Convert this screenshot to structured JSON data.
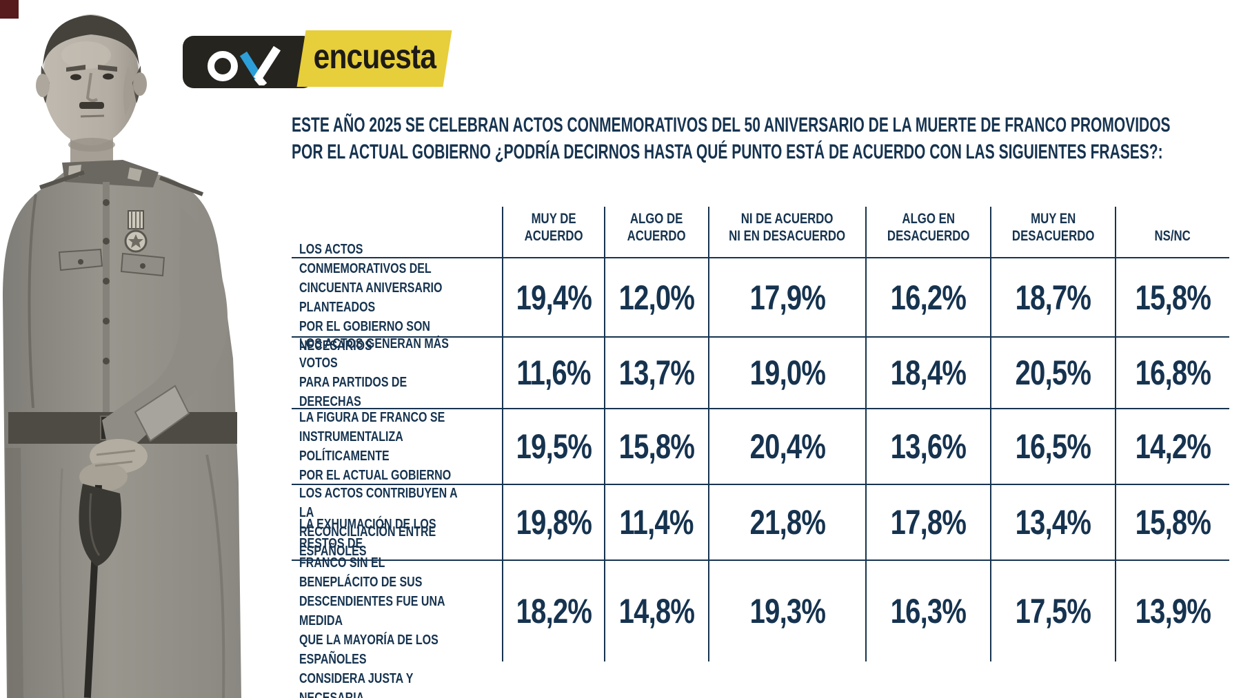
{
  "colors": {
    "ink": "#16334f",
    "logo_black": "#26241f",
    "logo_yellow": "#e7ce3b",
    "logo_blue": "#2d9fd8",
    "logo_text": "#1d1b17"
  },
  "logo": {
    "ok_text": "ok",
    "wordmark": "encuesta"
  },
  "title": {
    "line1": "ESTE AÑO 2025 SE CELEBRAN ACTOS CONMEMORATIVOS DEL 50 ANIVERSARIO DE LA MUERTE DE FRANCO PROMOVIDOS",
    "line2": "POR EL ACTUAL GOBIERNO ¿PODRÍA DECIRNOS HASTA QUÉ PUNTO ESTÁ DE ACUERDO CON LAS SIGUIENTES FRASES?:"
  },
  "photo": {
    "subject": "franco-portrait"
  },
  "chart_data": {
    "type": "table",
    "title": "ESTE AÑO 2025 SE CELEBRAN ACTOS CONMEMORATIVOS DEL 50 ANIVERSARIO DE LA MUERTE DE FRANCO PROMOVIDOS POR EL ACTUAL GOBIERNO ¿PODRÍA DECIRNOS HASTA QUÉ PUNTO ESTÁ DE ACUERDO CON LAS SIGUIENTES FRASES?:",
    "columns": [
      "MUY DE ACUERDO",
      "ALGO DE ACUERDO",
      "NI DE ACUERDO NI EN DESACUERDO",
      "ALGO EN DESACUERDO",
      "MUY EN DESACUERDO",
      "NS/NC"
    ],
    "column_lines": [
      [
        "MUY DE",
        "ACUERDO"
      ],
      [
        "ALGO DE",
        "ACUERDO"
      ],
      [
        "NI DE ACUERDO",
        "NI EN DESACUERDO"
      ],
      [
        "ALGO EN",
        "DESACUERDO"
      ],
      [
        "MUY EN",
        "DESACUERDO"
      ],
      [
        "NS/NC"
      ]
    ],
    "rows": [
      {
        "label": "LOS ACTOS CONMEMORATIVOS DEL CINCUENTA ANIVERSARIO PLANTEADOS POR EL GOBIERNO SON NECESARIOS",
        "label_lines": [
          "LOS ACTOS CONMEMORATIVOS DEL",
          "CINCUENTA ANIVERSARIO PLANTEADOS",
          "POR EL GOBIERNO SON NECESARIOS"
        ],
        "values": [
          "19,4%",
          "12,0%",
          "17,9%",
          "16,2%",
          "18,7%",
          "15,8%"
        ]
      },
      {
        "label": "LOS ACTOS GENERAN MÁS VOTOS PARA PARTIDOS DE DERECHAS",
        "label_lines": [
          "LOS ACTOS GENERAN MÁS VOTOS",
          "PARA PARTIDOS DE DERECHAS"
        ],
        "values": [
          "11,6%",
          "13,7%",
          "19,0%",
          "18,4%",
          "20,5%",
          "16,8%"
        ]
      },
      {
        "label": "LA FIGURA DE FRANCO SE INSTRUMENTALIZA POLÍTICAMENTE POR EL ACTUAL GOBIERNO",
        "label_lines": [
          "LA FIGURA DE FRANCO SE",
          "INSTRUMENTALIZA POLÍTICAMENTE",
          "POR EL ACTUAL GOBIERNO"
        ],
        "values": [
          "19,5%",
          "15,8%",
          "20,4%",
          "13,6%",
          "16,5%",
          "14,2%"
        ]
      },
      {
        "label": "LOS ACTOS CONTRIBUYEN A LA RECONCILIACIÓN ENTRE ESPAÑOLES",
        "label_lines": [
          "LOS ACTOS CONTRIBUYEN A LA",
          "RECONCILIACIÓN ENTRE ESPAÑOLES"
        ],
        "values": [
          "19,8%",
          "11,4%",
          "21,8%",
          "17,8%",
          "13,4%",
          "15,8%"
        ]
      },
      {
        "label": "LA EXHUMACIÓN DE LOS RESTOS DE FRANCO SIN EL BENEPLÁCITO DE SUS DESCENDIENTES FUE UNA MEDIDA QUE LA MAYORÍA DE LOS ESPAÑOLES CONSIDERA JUSTA Y NECESARIA",
        "label_lines": [
          "LA EXHUMACIÓN DE LOS RESTOS DE",
          "FRANCO SIN EL BENEPLÁCITO DE SUS",
          "DESCENDIENTES FUE UNA MEDIDA",
          "QUE LA MAYORÍA DE LOS ESPAÑOLES",
          "CONSIDERA JUSTA Y NECESARIA"
        ],
        "values": [
          "18,2%",
          "14,8%",
          "19,3%",
          "16,3%",
          "17,5%",
          "13,9%"
        ]
      }
    ]
  }
}
